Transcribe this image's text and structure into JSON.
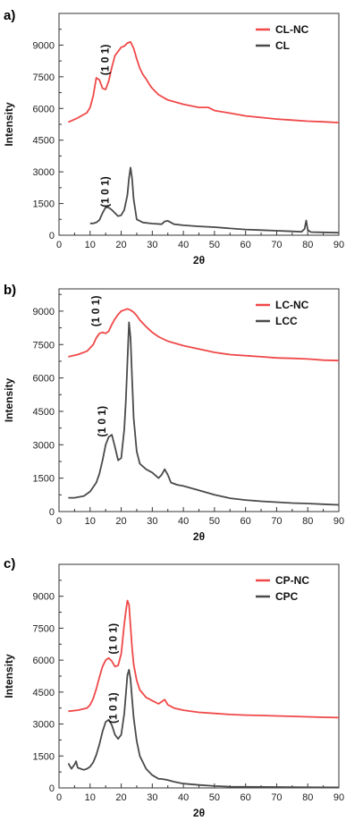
{
  "colors": {
    "red": "#f04848",
    "gray": "#4a4a4a",
    "axis": "#333333"
  },
  "chart_data": [
    {
      "type": "line",
      "panel": "a)",
      "xlabel": "2θ",
      "ylabel": "Intensity",
      "xlim": [
        0,
        90
      ],
      "ylim": [
        0,
        10500
      ],
      "xticks": [
        0,
        10,
        20,
        30,
        40,
        50,
        60,
        70,
        80,
        90
      ],
      "yticks": [
        0,
        1500,
        3000,
        4500,
        6000,
        7500,
        9000
      ],
      "legend": "top-right",
      "annotations": [
        {
          "text": "(1 0 1)",
          "x": 16,
          "y": 8300
        },
        {
          "text": "(1 0 1)",
          "x": 16,
          "y": 2050
        }
      ],
      "series": [
        {
          "name": "CL-NC",
          "color": "#f04848",
          "x": [
            3,
            6,
            9,
            10,
            11,
            12,
            13,
            14,
            15,
            16,
            17,
            18,
            19,
            20,
            21,
            22,
            23,
            24,
            25,
            26,
            27,
            28,
            29,
            30,
            32,
            35,
            40,
            45,
            48,
            50,
            55,
            60,
            65,
            70,
            75,
            80,
            85,
            90
          ],
          "y": [
            5350,
            5550,
            5800,
            6050,
            6600,
            7450,
            7350,
            6950,
            6900,
            7300,
            7950,
            8500,
            8700,
            8900,
            8950,
            9100,
            9150,
            8850,
            8350,
            7900,
            7600,
            7400,
            7150,
            6950,
            6650,
            6400,
            6200,
            6050,
            6050,
            5900,
            5780,
            5650,
            5570,
            5500,
            5450,
            5400,
            5370,
            5330
          ]
        },
        {
          "name": "CL",
          "color": "#4a4a4a",
          "x": [
            10,
            11,
            12,
            13,
            14,
            15,
            16,
            17,
            18,
            19,
            20,
            21,
            22,
            22.5,
            23,
            23.5,
            24,
            25,
            27,
            30,
            33,
            34,
            35,
            37,
            40,
            45,
            50,
            55,
            60,
            65,
            70,
            75,
            78,
            79,
            79.5,
            80,
            81,
            83,
            90
          ],
          "y": [
            560,
            560,
            600,
            720,
            1050,
            1320,
            1310,
            1200,
            1050,
            900,
            950,
            1200,
            1900,
            2700,
            3200,
            2700,
            1700,
            750,
            600,
            550,
            520,
            650,
            680,
            520,
            470,
            420,
            380,
            320,
            270,
            240,
            210,
            180,
            160,
            300,
            700,
            250,
            150,
            140,
            120
          ]
        }
      ]
    },
    {
      "type": "line",
      "panel": "b)",
      "xlabel": "2θ",
      "ylabel": "Intensity",
      "xlim": [
        0,
        90
      ],
      "ylim": [
        0,
        10000
      ],
      "xticks": [
        0,
        10,
        20,
        30,
        40,
        50,
        60,
        70,
        80,
        90
      ],
      "yticks": [
        0,
        1500,
        3000,
        4500,
        6000,
        7500,
        9000
      ],
      "legend": "top-right",
      "annotations": [
        {
          "text": "(1 0 1)",
          "x": 13,
          "y": 9000
        },
        {
          "text": "(1 0 1)",
          "x": 15,
          "y": 4050
        }
      ],
      "series": [
        {
          "name": "LC-NC",
          "color": "#f04848",
          "x": [
            3,
            6,
            9,
            10,
            11,
            12,
            13,
            14,
            15,
            16,
            17,
            18,
            19,
            20,
            21,
            22,
            23,
            24,
            25,
            26,
            28,
            30,
            32,
            35,
            40,
            45,
            50,
            55,
            60,
            65,
            70,
            75,
            80,
            85,
            90
          ],
          "y": [
            6950,
            7050,
            7200,
            7350,
            7500,
            7800,
            8000,
            8050,
            8000,
            8100,
            8400,
            8650,
            8850,
            9000,
            9050,
            9100,
            9050,
            8950,
            8800,
            8600,
            8300,
            8050,
            7850,
            7650,
            7450,
            7300,
            7150,
            7050,
            7000,
            6950,
            6900,
            6880,
            6850,
            6800,
            6780
          ]
        },
        {
          "name": "LCC",
          "color": "#4a4a4a",
          "x": [
            3,
            5,
            8,
            10,
            12,
            13,
            14,
            15,
            16,
            17,
            18,
            19,
            20,
            21,
            21.5,
            22,
            22.5,
            23,
            23.5,
            24,
            25,
            26,
            28,
            30,
            32,
            33,
            34,
            35,
            36,
            38,
            40,
            45,
            50,
            55,
            60,
            65,
            70,
            75,
            80,
            85,
            90
          ],
          "y": [
            620,
            620,
            700,
            900,
            1300,
            1700,
            2300,
            3000,
            3350,
            3450,
            2900,
            2300,
            2400,
            3700,
            5000,
            6700,
            8500,
            7800,
            6000,
            4200,
            2700,
            2150,
            1900,
            1750,
            1500,
            1650,
            1900,
            1650,
            1300,
            1200,
            1150,
            950,
            750,
            600,
            520,
            460,
            420,
            380,
            360,
            330,
            300
          ]
        }
      ]
    },
    {
      "type": "line",
      "panel": "c)",
      "xlabel": "2θ",
      "ylabel": "Intensity",
      "xlim": [
        0,
        90
      ],
      "ylim": [
        0,
        10500
      ],
      "xticks": [
        0,
        10,
        20,
        30,
        40,
        50,
        60,
        70,
        80,
        90
      ],
      "yticks": [
        0,
        1500,
        3000,
        4500,
        6000,
        7500,
        9000
      ],
      "legend": "top-right",
      "annotations": [
        {
          "text": "(1 0 1)",
          "x": 18.5,
          "y": 7000
        },
        {
          "text": "(1 0 1)",
          "x": 18.5,
          "y": 3750
        }
      ],
      "series": [
        {
          "name": "CP-NC",
          "color": "#f04848",
          "x": [
            3,
            6,
            9,
            10,
            11,
            12,
            13,
            14,
            15,
            16,
            17,
            18,
            19,
            20,
            20.5,
            21,
            21.5,
            22,
            22.5,
            23,
            23.5,
            24,
            25,
            26,
            28,
            30,
            32,
            33,
            34,
            35,
            37,
            40,
            45,
            50,
            55,
            60,
            65,
            70,
            75,
            80,
            85,
            90
          ],
          "y": [
            3600,
            3650,
            3750,
            3900,
            4200,
            4650,
            5200,
            5700,
            6000,
            6100,
            5950,
            5700,
            5750,
            6300,
            7000,
            7700,
            8300,
            8800,
            8600,
            7600,
            6600,
            5800,
            5050,
            4600,
            4250,
            4100,
            3950,
            4050,
            4150,
            3900,
            3750,
            3650,
            3550,
            3500,
            3450,
            3420,
            3400,
            3380,
            3360,
            3340,
            3320,
            3300
          ]
        },
        {
          "name": "CPC",
          "color": "#4a4a4a",
          "x": [
            3,
            4,
            5,
            5.5,
            6,
            7,
            8,
            9,
            10,
            11,
            12,
            13,
            14,
            15,
            16,
            17,
            18,
            19,
            20,
            21,
            21.5,
            22,
            22.5,
            23,
            23.5,
            24,
            25,
            26,
            28,
            30,
            32,
            33,
            34,
            35,
            37,
            40,
            45,
            50,
            55,
            60,
            70,
            80,
            90
          ],
          "y": [
            1150,
            900,
            1100,
            1250,
            950,
            900,
            850,
            900,
            1000,
            1200,
            1550,
            2050,
            2650,
            3100,
            3200,
            2950,
            2500,
            2300,
            2500,
            3500,
            4400,
            5300,
            5550,
            5100,
            4200,
            3300,
            2200,
            1500,
            900,
            600,
            430,
            420,
            400,
            370,
            290,
            200,
            140,
            90,
            60,
            50,
            40,
            30,
            25
          ]
        }
      ]
    }
  ]
}
